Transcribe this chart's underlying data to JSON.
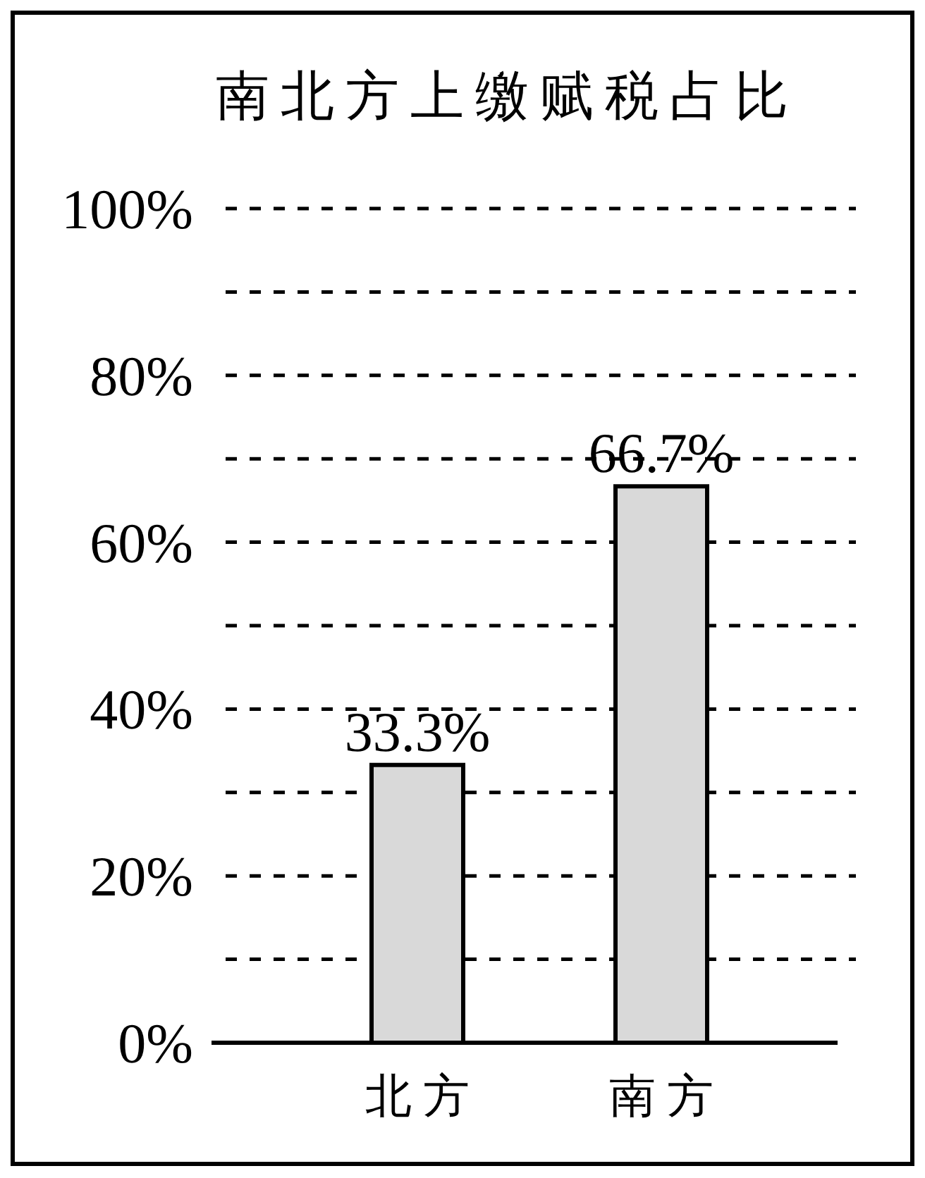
{
  "chart_data": {
    "type": "bar",
    "title": "南北方上缴赋税占比",
    "categories": [
      "北方",
      "南方"
    ],
    "values": [
      33.3,
      66.7
    ],
    "color": "#d9d9d9",
    "value_labels": [
      "33.3%",
      "66.7%"
    ],
    "ylim": [
      0,
      100
    ],
    "yticks": [
      {
        "value": 0,
        "label": "0%"
      },
      {
        "value": 10,
        "label": null
      },
      {
        "value": 20,
        "label": "20%"
      },
      {
        "value": 30,
        "label": null
      },
      {
        "value": 40,
        "label": "40%"
      },
      {
        "value": 50,
        "label": null
      },
      {
        "value": 60,
        "label": "60%"
      },
      {
        "value": 70,
        "label": null
      },
      {
        "value": 80,
        "label": "80%"
      },
      {
        "value": 90,
        "label": null
      },
      {
        "value": 100,
        "label": "100%"
      }
    ],
    "grid": "y"
  }
}
